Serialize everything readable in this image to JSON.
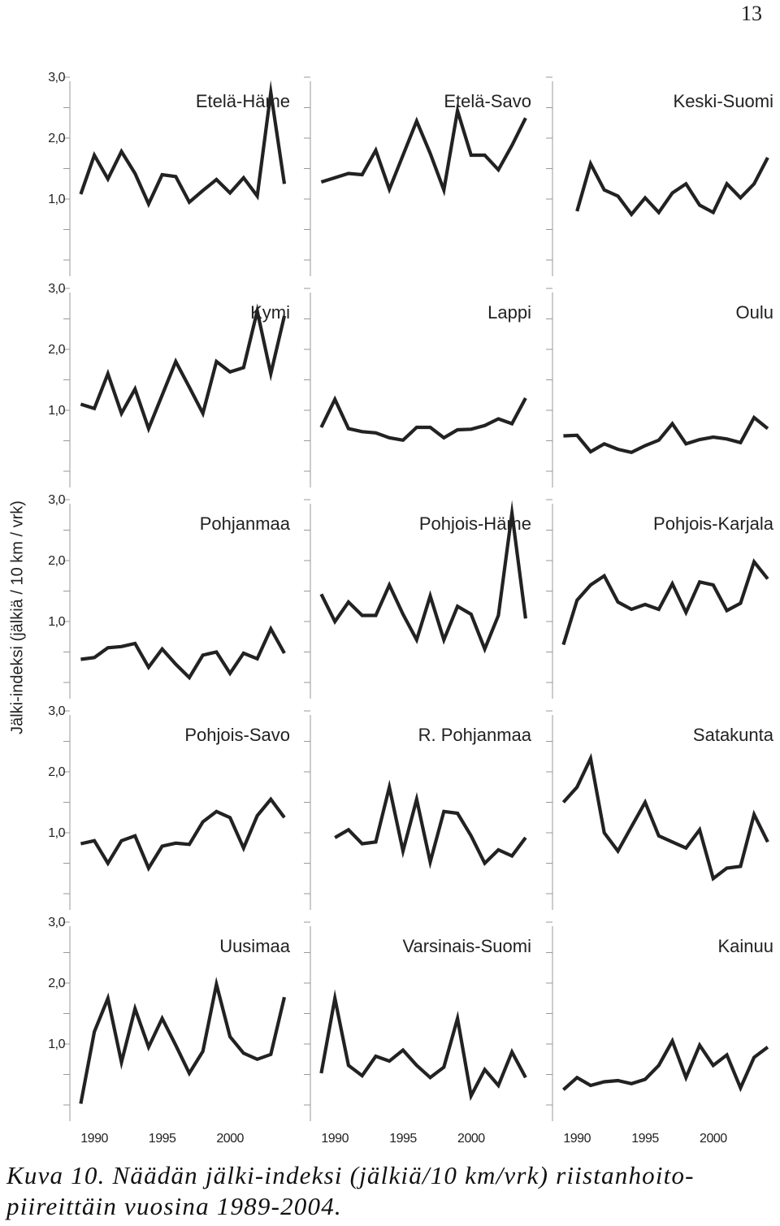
{
  "page_number": "13",
  "caption": "Kuva 10. Näädän jälki-indeksi (jälkiä/10 km/vrk) riistanhoito-piireittäin vuosina 1989-2004.",
  "chart_data": {
    "type": "line",
    "layout": "small-multiples",
    "ylabel": "Jälki-indeksi (jälkiä / 10 km / vrk)",
    "ytick_labels": [
      "3,0",
      "2,0",
      "1,0"
    ],
    "yticks": [
      3.0,
      2.0,
      1.0
    ],
    "ylim": [
      0,
      3.2
    ],
    "xtick_labels": [
      "1990",
      "1995",
      "2000"
    ],
    "xticks": [
      1990,
      1995,
      2000
    ],
    "xlim": [
      1988.2,
      2004.9
    ],
    "line_color": "#222222",
    "grid": false,
    "panels": [
      {
        "title": "Etelä-Häme",
        "x": [
          1989,
          1990,
          1991,
          1992,
          1993,
          1994,
          1995,
          1996,
          1997,
          1998,
          1999,
          2000,
          2001,
          2002,
          2003,
          2004
        ],
        "values": [
          1.08,
          1.72,
          1.33,
          1.78,
          1.42,
          0.92,
          1.4,
          1.37,
          0.95,
          1.14,
          1.32,
          1.1,
          1.35,
          1.05,
          2.75,
          1.25
        ]
      },
      {
        "title": "Etelä-Savo",
        "x": [
          1989,
          1990,
          1991,
          1992,
          1993,
          1994,
          1995,
          1996,
          1997,
          1998,
          1999,
          2000,
          2001,
          2002,
          2003,
          2004
        ],
        "values": [
          1.28,
          1.35,
          1.42,
          1.4,
          1.8,
          1.16,
          1.72,
          2.28,
          1.75,
          1.15,
          2.45,
          1.72,
          1.72,
          1.48,
          1.88,
          2.33
        ]
      },
      {
        "title": "Keski-Suomi",
        "x": [
          1990,
          1991,
          1992,
          1993,
          1994,
          1995,
          1996,
          1997,
          1998,
          1999,
          2000,
          2001,
          2002,
          2003,
          2004
        ],
        "values": [
          0.8,
          1.58,
          1.15,
          1.05,
          0.75,
          1.02,
          0.78,
          1.1,
          1.25,
          0.9,
          0.78,
          1.25,
          1.02,
          1.25,
          1.68
        ]
      },
      {
        "title": "Kymi",
        "x": [
          1989,
          1990,
          1991,
          1992,
          1993,
          1994,
          1995,
          1996,
          1997,
          1998,
          1999,
          2000,
          2001,
          2002,
          2003,
          2004
        ],
        "values": [
          1.1,
          1.03,
          1.6,
          0.95,
          1.35,
          0.7,
          1.25,
          1.8,
          1.38,
          0.95,
          1.8,
          1.63,
          1.7,
          2.63,
          1.6,
          2.55
        ]
      },
      {
        "title": "Lappi",
        "x": [
          1989,
          1990,
          1991,
          1992,
          1993,
          1994,
          1995,
          1996,
          1997,
          1998,
          1999,
          2000,
          2001,
          2002,
          2003,
          2004
        ],
        "values": [
          0.72,
          1.18,
          0.7,
          0.65,
          0.63,
          0.55,
          0.51,
          0.72,
          0.72,
          0.55,
          0.68,
          0.69,
          0.75,
          0.86,
          0.78,
          1.2
        ]
      },
      {
        "title": "Oulu",
        "x": [
          1989,
          1990,
          1991,
          1992,
          1993,
          1994,
          1995,
          1996,
          1997,
          1998,
          1999,
          2000,
          2001,
          2002,
          2003,
          2004
        ],
        "values": [
          0.58,
          0.59,
          0.32,
          0.45,
          0.36,
          0.31,
          0.42,
          0.51,
          0.78,
          0.45,
          0.52,
          0.56,
          0.53,
          0.47,
          0.88,
          0.7
        ]
      },
      {
        "title": "Pohjanmaa",
        "x": [
          1989,
          1990,
          1991,
          1992,
          1993,
          1994,
          1995,
          1996,
          1997,
          1998,
          1999,
          2000,
          2001,
          2002,
          2003,
          2004
        ],
        "values": [
          0.38,
          0.41,
          0.57,
          0.59,
          0.64,
          0.25,
          0.55,
          0.3,
          0.08,
          0.45,
          0.5,
          0.15,
          0.48,
          0.39,
          0.88,
          0.48
        ]
      },
      {
        "title": "Pohjois-Häme",
        "x": [
          1989,
          1990,
          1991,
          1992,
          1993,
          1994,
          1995,
          1996,
          1997,
          1998,
          1999,
          2000,
          2001,
          2002,
          2003,
          2004
        ],
        "values": [
          1.45,
          1.0,
          1.32,
          1.1,
          1.1,
          1.6,
          1.12,
          0.7,
          1.42,
          0.7,
          1.25,
          1.12,
          0.55,
          1.1,
          2.78,
          1.05
        ]
      },
      {
        "title": "Pohjois-Karjala",
        "x": [
          1989,
          1990,
          1991,
          1992,
          1993,
          1994,
          1995,
          1996,
          1997,
          1998,
          1999,
          2000,
          2001,
          2002,
          2003,
          2004
        ],
        "values": [
          0.62,
          1.35,
          1.6,
          1.75,
          1.32,
          1.2,
          1.28,
          1.2,
          1.62,
          1.15,
          1.65,
          1.6,
          1.18,
          1.3,
          1.98,
          1.7
        ]
      },
      {
        "title": "Pohjois-Savo",
        "x": [
          1989,
          1990,
          1991,
          1992,
          1993,
          1994,
          1995,
          1996,
          1997,
          1998,
          1999,
          2000,
          2001,
          2002,
          2003,
          2004
        ],
        "values": [
          0.82,
          0.87,
          0.5,
          0.87,
          0.95,
          0.42,
          0.78,
          0.83,
          0.81,
          1.18,
          1.35,
          1.25,
          0.75,
          1.28,
          1.55,
          1.25
        ]
      },
      {
        "title": "R. Pohjanmaa",
        "x": [
          1990,
          1991,
          1992,
          1993,
          1994,
          1995,
          1996,
          1997,
          1998,
          1999,
          2000,
          2001,
          2002,
          2003,
          2004
        ],
        "values": [
          0.92,
          1.05,
          0.82,
          0.85,
          1.75,
          0.7,
          1.55,
          0.52,
          1.35,
          1.32,
          0.95,
          0.5,
          0.72,
          0.62,
          0.92
        ]
      },
      {
        "title": "Satakunta",
        "x": [
          1989,
          1990,
          1991,
          1992,
          1993,
          1994,
          1995,
          1996,
          1997,
          1998,
          1999,
          2000,
          2001,
          2002,
          2003,
          2004
        ],
        "values": [
          1.5,
          1.75,
          2.22,
          1.0,
          0.7,
          1.1,
          1.5,
          0.95,
          0.85,
          0.75,
          1.05,
          0.25,
          0.42,
          0.45,
          1.3,
          0.85
        ]
      },
      {
        "title": "Uusimaa",
        "x": [
          1989,
          1990,
          1991,
          1992,
          1993,
          1994,
          1995,
          1996,
          1997,
          1998,
          1999,
          2000,
          2001,
          2002,
          2003,
          2004
        ],
        "values": [
          0.02,
          1.2,
          1.75,
          0.7,
          1.58,
          0.95,
          1.42,
          0.98,
          0.52,
          0.88,
          1.98,
          1.12,
          0.85,
          0.75,
          0.83,
          1.77
        ]
      },
      {
        "title": "Varsinais-Suomi",
        "x": [
          1989,
          1990,
          1991,
          1992,
          1993,
          1994,
          1995,
          1996,
          1997,
          1998,
          1999,
          2000,
          2001,
          2002,
          2003,
          2004
        ],
        "values": [
          0.52,
          1.75,
          0.65,
          0.48,
          0.8,
          0.72,
          0.9,
          0.65,
          0.45,
          0.62,
          1.42,
          0.15,
          0.58,
          0.32,
          0.87,
          0.45
        ]
      },
      {
        "title": "Kainuu",
        "x": [
          1989,
          1990,
          1991,
          1992,
          1993,
          1994,
          1995,
          1996,
          1997,
          1998,
          1999,
          2000,
          2001,
          2002,
          2003,
          2004
        ],
        "values": [
          0.25,
          0.45,
          0.32,
          0.38,
          0.4,
          0.35,
          0.42,
          0.65,
          1.05,
          0.45,
          0.98,
          0.65,
          0.82,
          0.28,
          0.78,
          0.95
        ]
      }
    ]
  }
}
